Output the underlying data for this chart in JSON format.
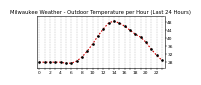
{
  "title": "Milwaukee Weather - Outdoor Temperature per Hour (Last 24 Hours)",
  "hours": [
    0,
    1,
    2,
    3,
    4,
    5,
    6,
    7,
    8,
    9,
    10,
    11,
    12,
    13,
    14,
    15,
    16,
    17,
    18,
    19,
    20,
    21,
    22,
    23
  ],
  "temps": [
    28.0,
    28.0,
    28.0,
    28.0,
    28.0,
    27.5,
    27.5,
    28.5,
    30.5,
    33.5,
    37.0,
    41.0,
    44.5,
    47.5,
    48.5,
    47.5,
    46.0,
    44.0,
    42.0,
    40.5,
    38.0,
    34.5,
    31.5,
    29.0
  ],
  "line_color": "#cc0000",
  "marker_color": "#000000",
  "grid_color": "#999999",
  "bg_color": "#ffffff",
  "ylim": [
    25,
    51
  ],
  "ytick_values": [
    28,
    32,
    36,
    40,
    44,
    48
  ],
  "xlim": [
    -0.5,
    23.5
  ],
  "xtick_positions": [
    0,
    1,
    2,
    3,
    4,
    5,
    6,
    7,
    8,
    9,
    10,
    11,
    12,
    13,
    14,
    15,
    16,
    17,
    18,
    19,
    20,
    21,
    22,
    23
  ],
  "title_fontsize": 3.8,
  "tick_fontsize": 3.2,
  "linewidth": 0.8,
  "markersize": 1.8
}
